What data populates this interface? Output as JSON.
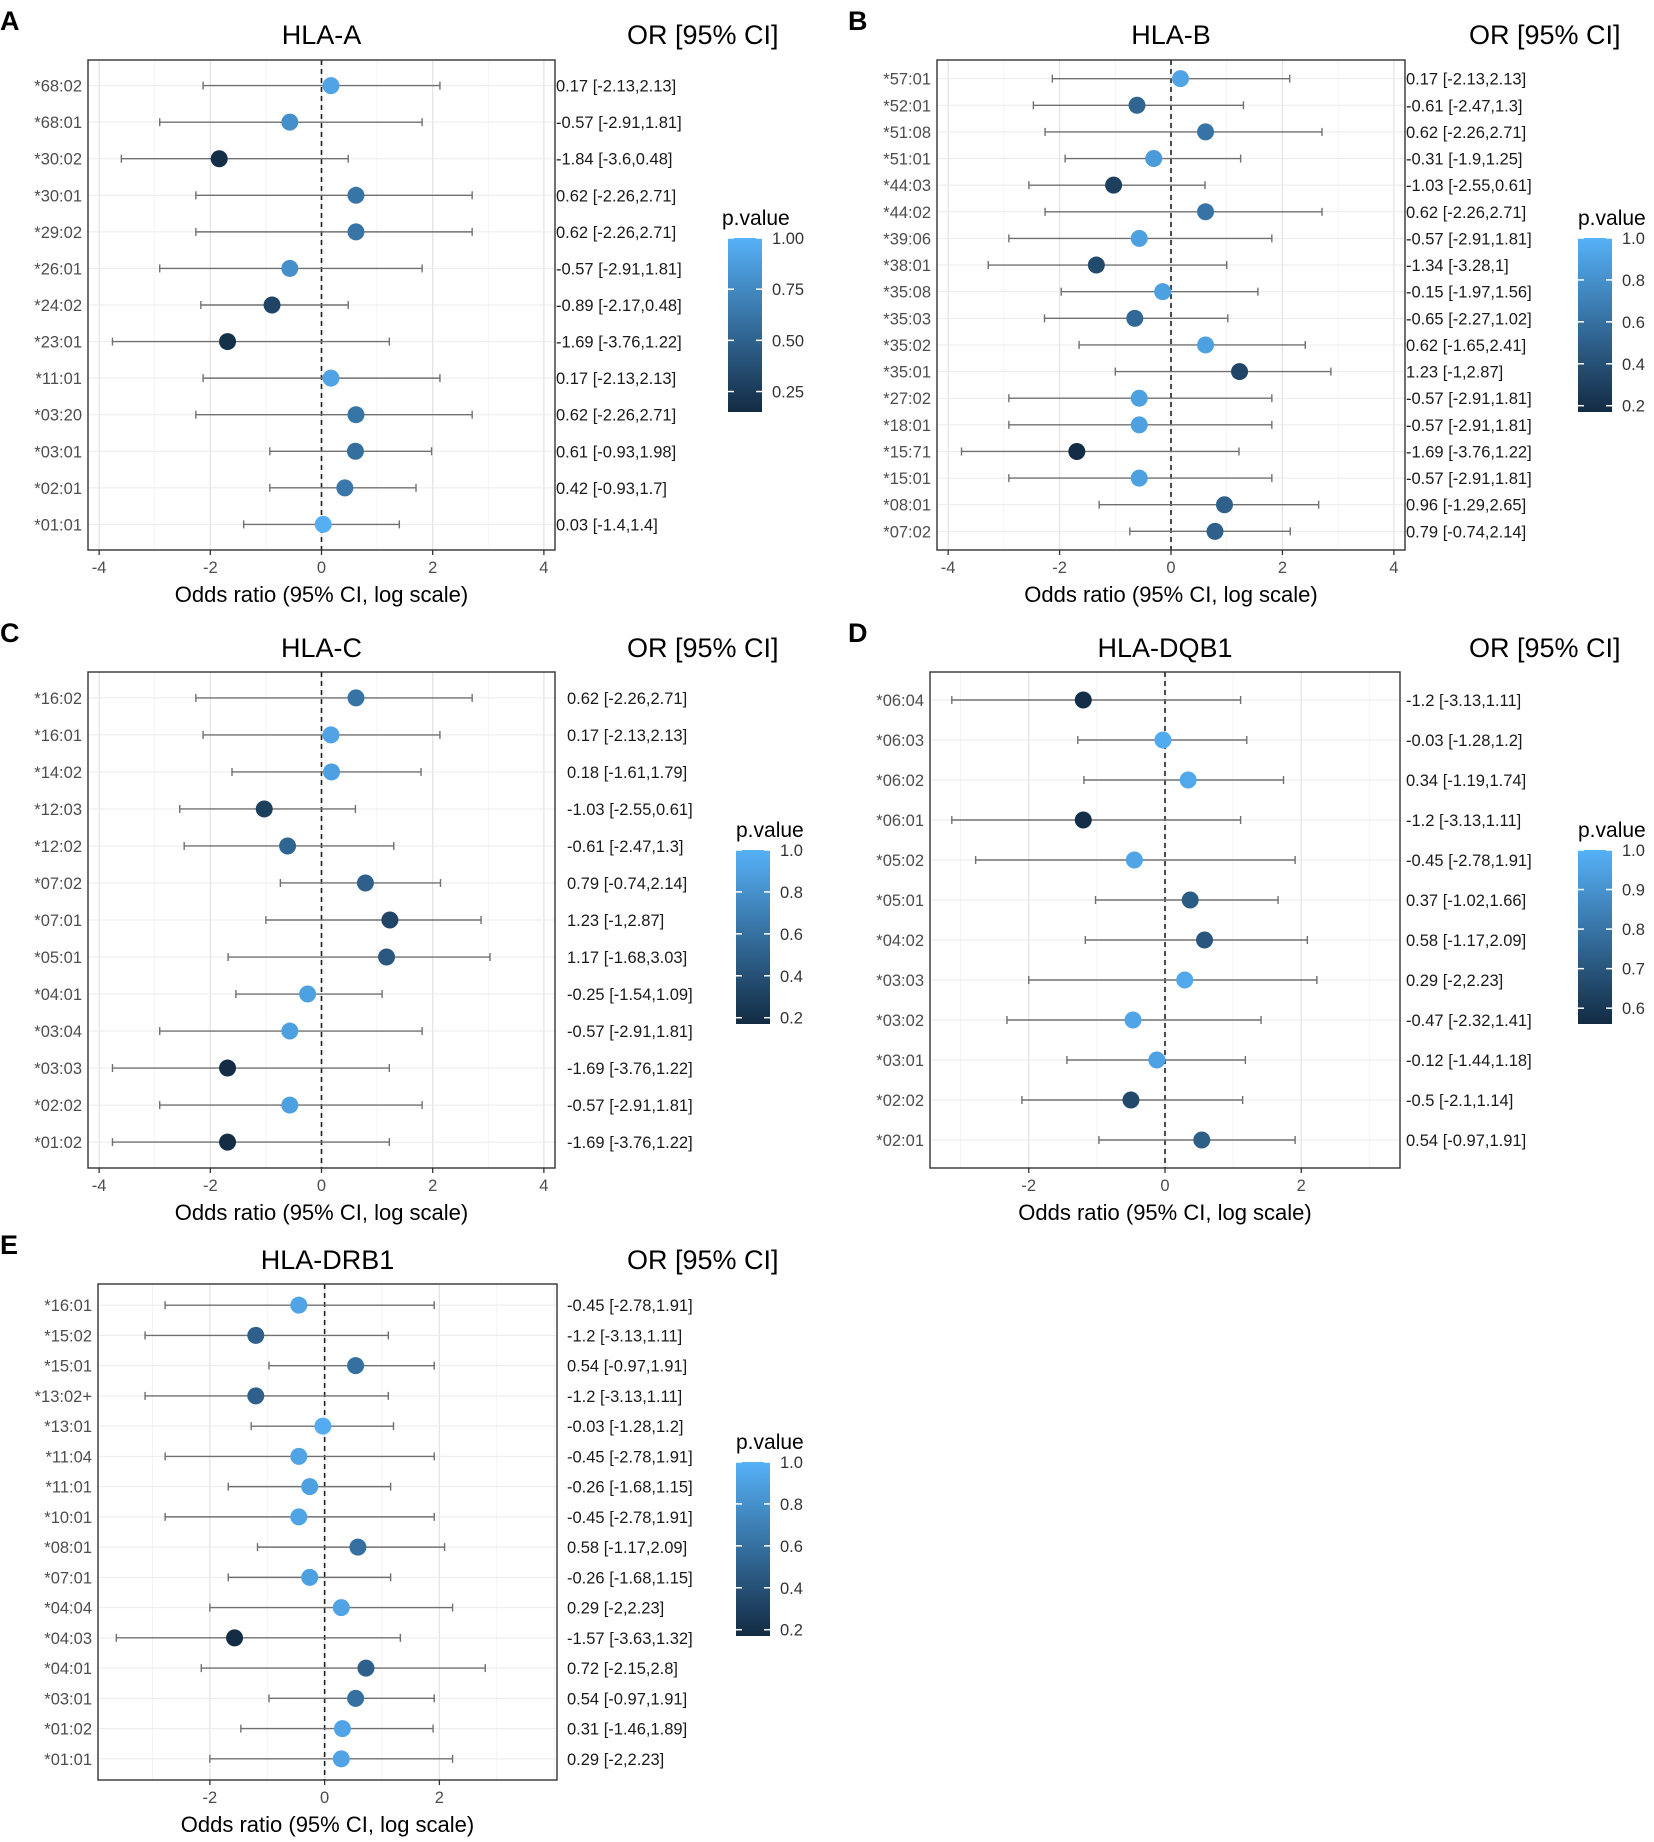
{
  "figure": {
    "xlabel": "Odds ratio (95% CI, log scale)",
    "or_header": "OR [95% CI]",
    "legend_title": "p.value"
  },
  "chart_data": [
    {
      "panel_letter": "A",
      "title": "HLA-A",
      "type": "scatter",
      "xlim": [
        -4.2,
        4.2
      ],
      "xticks": [
        -4,
        -2,
        0,
        2,
        4
      ],
      "reference_line": 0,
      "legend_ticks": [
        "1.00",
        "0.75",
        "0.50",
        "0.25"
      ],
      "legend_values": [
        1.0,
        0.75,
        0.5,
        0.25
      ],
      "pvalue_range": [
        0.15,
        1.0
      ],
      "rows": [
        {
          "allele": "*68:02",
          "or": 0.17,
          "lo": -2.13,
          "hi": 2.13,
          "p": 0.92,
          "label": "0.17 [-2.13,2.13]"
        },
        {
          "allele": "*68:01",
          "or": -0.57,
          "lo": -2.91,
          "hi": 1.81,
          "p": 0.79,
          "label": "-0.57 [-2.91,1.81]"
        },
        {
          "allele": "*30:02",
          "or": -1.84,
          "lo": -3.6,
          "hi": 0.48,
          "p": 0.17,
          "label": "-1.84 [-3.6,0.48]"
        },
        {
          "allele": "*30:01",
          "or": 0.62,
          "lo": -2.26,
          "hi": 2.71,
          "p": 0.62,
          "label": "0.62 [-2.26,2.71]"
        },
        {
          "allele": "*29:02",
          "or": 0.62,
          "lo": -2.26,
          "hi": 2.71,
          "p": 0.62,
          "label": "0.62 [-2.26,2.71]"
        },
        {
          "allele": "*26:01",
          "or": -0.57,
          "lo": -2.91,
          "hi": 1.81,
          "p": 0.79,
          "label": "-0.57 [-2.91,1.81]"
        },
        {
          "allele": "*24:02",
          "or": -0.89,
          "lo": -2.17,
          "hi": 0.48,
          "p": 0.31,
          "label": "-0.89 [-2.17,0.48]"
        },
        {
          "allele": "*23:01",
          "or": -1.69,
          "lo": -3.76,
          "hi": 1.22,
          "p": 0.18,
          "label": "-1.69 [-3.76,1.22]"
        },
        {
          "allele": "*11:01",
          "or": 0.17,
          "lo": -2.13,
          "hi": 2.13,
          "p": 0.92,
          "label": "0.17 [-2.13,2.13]"
        },
        {
          "allele": "*03:20",
          "or": 0.62,
          "lo": -2.26,
          "hi": 2.71,
          "p": 0.62,
          "label": "0.62 [-2.26,2.71]"
        },
        {
          "allele": "*03:01",
          "or": 0.61,
          "lo": -0.93,
          "hi": 1.98,
          "p": 0.58,
          "label": "0.61 [-0.93,1.98]"
        },
        {
          "allele": "*02:01",
          "or": 0.42,
          "lo": -0.93,
          "hi": 1.7,
          "p": 0.64,
          "label": "0.42 [-0.93,1.7]"
        },
        {
          "allele": "*01:01",
          "or": 0.03,
          "lo": -1.4,
          "hi": 1.4,
          "p": 0.99,
          "label": "0.03 [-1.4,1.4]"
        }
      ]
    },
    {
      "panel_letter": "B",
      "title": "HLA-B",
      "type": "scatter",
      "xlim": [
        -4.2,
        4.2
      ],
      "xticks": [
        -4,
        -2,
        0,
        2,
        4
      ],
      "reference_line": 0,
      "legend_ticks": [
        "1.0",
        "0.8",
        "0.6",
        "0.4",
        "0.2"
      ],
      "legend_values": [
        1.0,
        0.8,
        0.6,
        0.4,
        0.2
      ],
      "pvalue_range": [
        0.17,
        1.0
      ],
      "rows": [
        {
          "allele": "*57:01",
          "or": 0.17,
          "lo": -2.13,
          "hi": 2.13,
          "p": 0.92,
          "label": "0.17 [-2.13,2.13]"
        },
        {
          "allele": "*52:01",
          "or": -0.61,
          "lo": -2.47,
          "hi": 1.3,
          "p": 0.53,
          "label": "-0.61 [-2.47,1.3]"
        },
        {
          "allele": "*51:08",
          "or": 0.62,
          "lo": -2.26,
          "hi": 2.71,
          "p": 0.62,
          "label": "0.62 [-2.26,2.71]"
        },
        {
          "allele": "*51:01",
          "or": -0.31,
          "lo": -1.9,
          "hi": 1.25,
          "p": 0.86,
          "label": "-0.31 [-1.9,1.25]"
        },
        {
          "allele": "*44:03",
          "or": -1.03,
          "lo": -2.55,
          "hi": 0.61,
          "p": 0.3,
          "label": "-1.03 [-2.55,0.61]"
        },
        {
          "allele": "*44:02",
          "or": 0.62,
          "lo": -2.26,
          "hi": 2.71,
          "p": 0.62,
          "label": "0.62 [-2.26,2.71]"
        },
        {
          "allele": "*39:06",
          "or": -0.57,
          "lo": -2.91,
          "hi": 1.81,
          "p": 0.9,
          "label": "-0.57 [-2.91,1.81]"
        },
        {
          "allele": "*38:01",
          "or": -1.34,
          "lo": -3.28,
          "hi": 1,
          "p": 0.36,
          "label": "-1.34 [-3.28,1]"
        },
        {
          "allele": "*35:08",
          "or": -0.15,
          "lo": -1.97,
          "hi": 1.56,
          "p": 0.9,
          "label": "-0.15 [-1.97,1.56]"
        },
        {
          "allele": "*35:03",
          "or": -0.65,
          "lo": -2.27,
          "hi": 1.02,
          "p": 0.55,
          "label": "-0.65 [-2.27,1.02]"
        },
        {
          "allele": "*35:02",
          "or": 0.62,
          "lo": -1.65,
          "hi": 2.41,
          "p": 0.9,
          "label": "0.62 [-1.65,2.41]"
        },
        {
          "allele": "*35:01",
          "or": 1.23,
          "lo": -1,
          "hi": 2.87,
          "p": 0.33,
          "label": "1.23 [-1,2.87]"
        },
        {
          "allele": "*27:02",
          "or": -0.57,
          "lo": -2.91,
          "hi": 1.81,
          "p": 0.9,
          "label": "-0.57 [-2.91,1.81]"
        },
        {
          "allele": "*18:01",
          "or": -0.57,
          "lo": -2.91,
          "hi": 1.81,
          "p": 0.9,
          "label": "-0.57 [-2.91,1.81]"
        },
        {
          "allele": "*15:71",
          "or": -1.69,
          "lo": -3.76,
          "hi": 1.22,
          "p": 0.18,
          "label": "-1.69 [-3.76,1.22]"
        },
        {
          "allele": "*15:01",
          "or": -0.57,
          "lo": -2.91,
          "hi": 1.81,
          "p": 0.9,
          "label": "-0.57 [-2.91,1.81]"
        },
        {
          "allele": "*08:01",
          "or": 0.96,
          "lo": -1.29,
          "hi": 2.65,
          "p": 0.5,
          "label": "0.96 [-1.29,2.65]"
        },
        {
          "allele": "*07:02",
          "or": 0.79,
          "lo": -0.74,
          "hi": 2.14,
          "p": 0.5,
          "label": "0.79 [-0.74,2.14]"
        }
      ]
    },
    {
      "panel_letter": "C",
      "title": "HLA-C",
      "type": "scatter",
      "xlim": [
        -4.2,
        4.2
      ],
      "xticks": [
        -4,
        -2,
        0,
        2,
        4
      ],
      "reference_line": 0,
      "legend_ticks": [
        "1.0",
        "0.8",
        "0.6",
        "0.4",
        "0.2"
      ],
      "legend_values": [
        1.0,
        0.8,
        0.6,
        0.4,
        0.2
      ],
      "pvalue_range": [
        0.17,
        1.0
      ],
      "rows": [
        {
          "allele": "*16:02",
          "or": 0.62,
          "lo": -2.26,
          "hi": 2.71,
          "p": 0.62,
          "label": "0.62 [-2.26,2.71]"
        },
        {
          "allele": "*16:01",
          "or": 0.17,
          "lo": -2.13,
          "hi": 2.13,
          "p": 0.92,
          "label": "0.17 [-2.13,2.13]"
        },
        {
          "allele": "*14:02",
          "or": 0.18,
          "lo": -1.61,
          "hi": 1.79,
          "p": 0.9,
          "label": "0.18 [-1.61,1.79]"
        },
        {
          "allele": "*12:03",
          "or": -1.03,
          "lo": -2.55,
          "hi": 0.61,
          "p": 0.3,
          "label": "-1.03 [-2.55,0.61]"
        },
        {
          "allele": "*12:02",
          "or": -0.61,
          "lo": -2.47,
          "hi": 1.3,
          "p": 0.53,
          "label": "-0.61 [-2.47,1.3]"
        },
        {
          "allele": "*07:02",
          "or": 0.79,
          "lo": -0.74,
          "hi": 2.14,
          "p": 0.5,
          "label": "0.79 [-0.74,2.14]"
        },
        {
          "allele": "*07:01",
          "or": 1.23,
          "lo": -1,
          "hi": 2.87,
          "p": 0.33,
          "label": "1.23 [-1,2.87]"
        },
        {
          "allele": "*05:01",
          "or": 1.17,
          "lo": -1.68,
          "hi": 3.03,
          "p": 0.44,
          "label": "1.17 [-1.68,3.03]"
        },
        {
          "allele": "*04:01",
          "or": -0.25,
          "lo": -1.54,
          "hi": 1.09,
          "p": 0.9,
          "label": "-0.25 [-1.54,1.09]"
        },
        {
          "allele": "*03:04",
          "or": -0.57,
          "lo": -2.91,
          "hi": 1.81,
          "p": 0.9,
          "label": "-0.57 [-2.91,1.81]"
        },
        {
          "allele": "*03:03",
          "or": -1.69,
          "lo": -3.76,
          "hi": 1.22,
          "p": 0.18,
          "label": "-1.69 [-3.76,1.22]"
        },
        {
          "allele": "*02:02",
          "or": -0.57,
          "lo": -2.91,
          "hi": 1.81,
          "p": 0.9,
          "label": "-0.57 [-2.91,1.81]"
        },
        {
          "allele": "*01:02",
          "or": -1.69,
          "lo": -3.76,
          "hi": 1.22,
          "p": 0.18,
          "label": "-1.69 [-3.76,1.22]"
        }
      ]
    },
    {
      "panel_letter": "D",
      "title": "HLA-DQB1",
      "type": "scatter",
      "xlim": [
        -3.45,
        3.45
      ],
      "xticks": [
        -2,
        0,
        2
      ],
      "reference_line": 0,
      "legend_ticks": [
        "1.0",
        "0.9",
        "0.8",
        "0.7",
        "0.6"
      ],
      "legend_values": [
        1.0,
        0.9,
        0.8,
        0.7,
        0.6
      ],
      "pvalue_range": [
        0.56,
        1.0
      ],
      "rows": [
        {
          "allele": "*06:04",
          "or": -1.2,
          "lo": -3.13,
          "hi": 1.11,
          "p": 0.57,
          "label": "-1.2 [-3.13,1.11]"
        },
        {
          "allele": "*06:03",
          "or": -0.03,
          "lo": -1.28,
          "hi": 1.2,
          "p": 0.98,
          "label": "-0.03 [-1.28,1.2]"
        },
        {
          "allele": "*06:02",
          "or": 0.34,
          "lo": -1.19,
          "hi": 1.74,
          "p": 0.97,
          "label": "0.34 [-1.19,1.74]"
        },
        {
          "allele": "*06:01",
          "or": -1.2,
          "lo": -3.13,
          "hi": 1.11,
          "p": 0.57,
          "label": "-1.2 [-3.13,1.11]"
        },
        {
          "allele": "*05:02",
          "or": -0.45,
          "lo": -2.78,
          "hi": 1.91,
          "p": 0.96,
          "label": "-0.45 [-2.78,1.91]"
        },
        {
          "allele": "*05:01",
          "or": 0.37,
          "lo": -1.02,
          "hi": 1.66,
          "p": 0.72,
          "label": "0.37 [-1.02,1.66]"
        },
        {
          "allele": "*04:02",
          "or": 0.58,
          "lo": -1.17,
          "hi": 2.09,
          "p": 0.7,
          "label": "0.58 [-1.17,2.09]"
        },
        {
          "allele": "*03:03",
          "or": 0.29,
          "lo": -2,
          "hi": 2.23,
          "p": 0.97,
          "label": "0.29 [-2,2.23]"
        },
        {
          "allele": "*03:02",
          "or": -0.47,
          "lo": -2.32,
          "hi": 1.41,
          "p": 0.96,
          "label": "-0.47 [-2.32,1.41]"
        },
        {
          "allele": "*03:01",
          "or": -0.12,
          "lo": -1.44,
          "hi": 1.18,
          "p": 0.95,
          "label": "-0.12 [-1.44,1.18]"
        },
        {
          "allele": "*02:02",
          "or": -0.5,
          "lo": -2.1,
          "hi": 1.14,
          "p": 0.66,
          "label": "-0.5 [-2.1,1.14]"
        },
        {
          "allele": "*02:01",
          "or": 0.54,
          "lo": -0.97,
          "hi": 1.91,
          "p": 0.73,
          "label": "0.54 [-0.97,1.91]"
        }
      ]
    },
    {
      "panel_letter": "E",
      "title": "HLA-DRB1",
      "type": "scatter",
      "xlim": [
        -3.95,
        4.05
      ],
      "xticks": [
        -2,
        0,
        2
      ],
      "reference_line": 0,
      "legend_ticks": [
        "1.0",
        "0.8",
        "0.6",
        "0.4",
        "0.2"
      ],
      "legend_values": [
        1.0,
        0.8,
        0.6,
        0.4,
        0.2
      ],
      "pvalue_range": [
        0.17,
        1.0
      ],
      "rows": [
        {
          "allele": "*16:01",
          "or": -0.45,
          "lo": -2.78,
          "hi": 1.91,
          "p": 0.92,
          "label": "-0.45 [-2.78,1.91]"
        },
        {
          "allele": "*15:02",
          "or": -1.2,
          "lo": -3.13,
          "hi": 1.11,
          "p": 0.5,
          "label": "-1.2 [-3.13,1.11]"
        },
        {
          "allele": "*15:01",
          "or": 0.54,
          "lo": -0.97,
          "hi": 1.91,
          "p": 0.6,
          "label": "0.54 [-0.97,1.91]"
        },
        {
          "allele": "*13:02+",
          "or": -1.2,
          "lo": -3.13,
          "hi": 1.11,
          "p": 0.5,
          "label": "-1.2 [-3.13,1.11]"
        },
        {
          "allele": "*13:01",
          "or": -0.03,
          "lo": -1.28,
          "hi": 1.2,
          "p": 0.97,
          "label": "-0.03 [-1.28,1.2]"
        },
        {
          "allele": "*11:04",
          "or": -0.45,
          "lo": -2.78,
          "hi": 1.91,
          "p": 0.92,
          "label": "-0.45 [-2.78,1.91]"
        },
        {
          "allele": "*11:01",
          "or": -0.26,
          "lo": -1.68,
          "hi": 1.15,
          "p": 0.9,
          "label": "-0.26 [-1.68,1.15]"
        },
        {
          "allele": "*10:01",
          "or": -0.45,
          "lo": -2.78,
          "hi": 1.91,
          "p": 0.92,
          "label": "-0.45 [-2.78,1.91]"
        },
        {
          "allele": "*08:01",
          "or": 0.58,
          "lo": -1.17,
          "hi": 2.09,
          "p": 0.6,
          "label": "0.58 [-1.17,2.09]"
        },
        {
          "allele": "*07:01",
          "or": -0.26,
          "lo": -1.68,
          "hi": 1.15,
          "p": 0.9,
          "label": "-0.26 [-1.68,1.15]"
        },
        {
          "allele": "*04:04",
          "or": 0.29,
          "lo": -2,
          "hi": 2.23,
          "p": 0.92,
          "label": "0.29 [-2,2.23]"
        },
        {
          "allele": "*04:03",
          "or": -1.57,
          "lo": -3.63,
          "hi": 1.32,
          "p": 0.18,
          "label": "-1.57 [-3.63,1.32]"
        },
        {
          "allele": "*04:01",
          "or": 0.72,
          "lo": -2.15,
          "hi": 2.8,
          "p": 0.5,
          "label": "0.72 [-2.15,2.8]"
        },
        {
          "allele": "*03:01",
          "or": 0.54,
          "lo": -0.97,
          "hi": 1.91,
          "p": 0.6,
          "label": "0.54 [-0.97,1.91]"
        },
        {
          "allele": "*01:02",
          "or": 0.31,
          "lo": -1.46,
          "hi": 1.89,
          "p": 0.92,
          "label": "0.31 [-1.46,1.89]"
        },
        {
          "allele": "*01:01",
          "or": 0.29,
          "lo": -2,
          "hi": 2.23,
          "p": 0.92,
          "label": "0.29 [-2,2.23]"
        }
      ]
    }
  ]
}
